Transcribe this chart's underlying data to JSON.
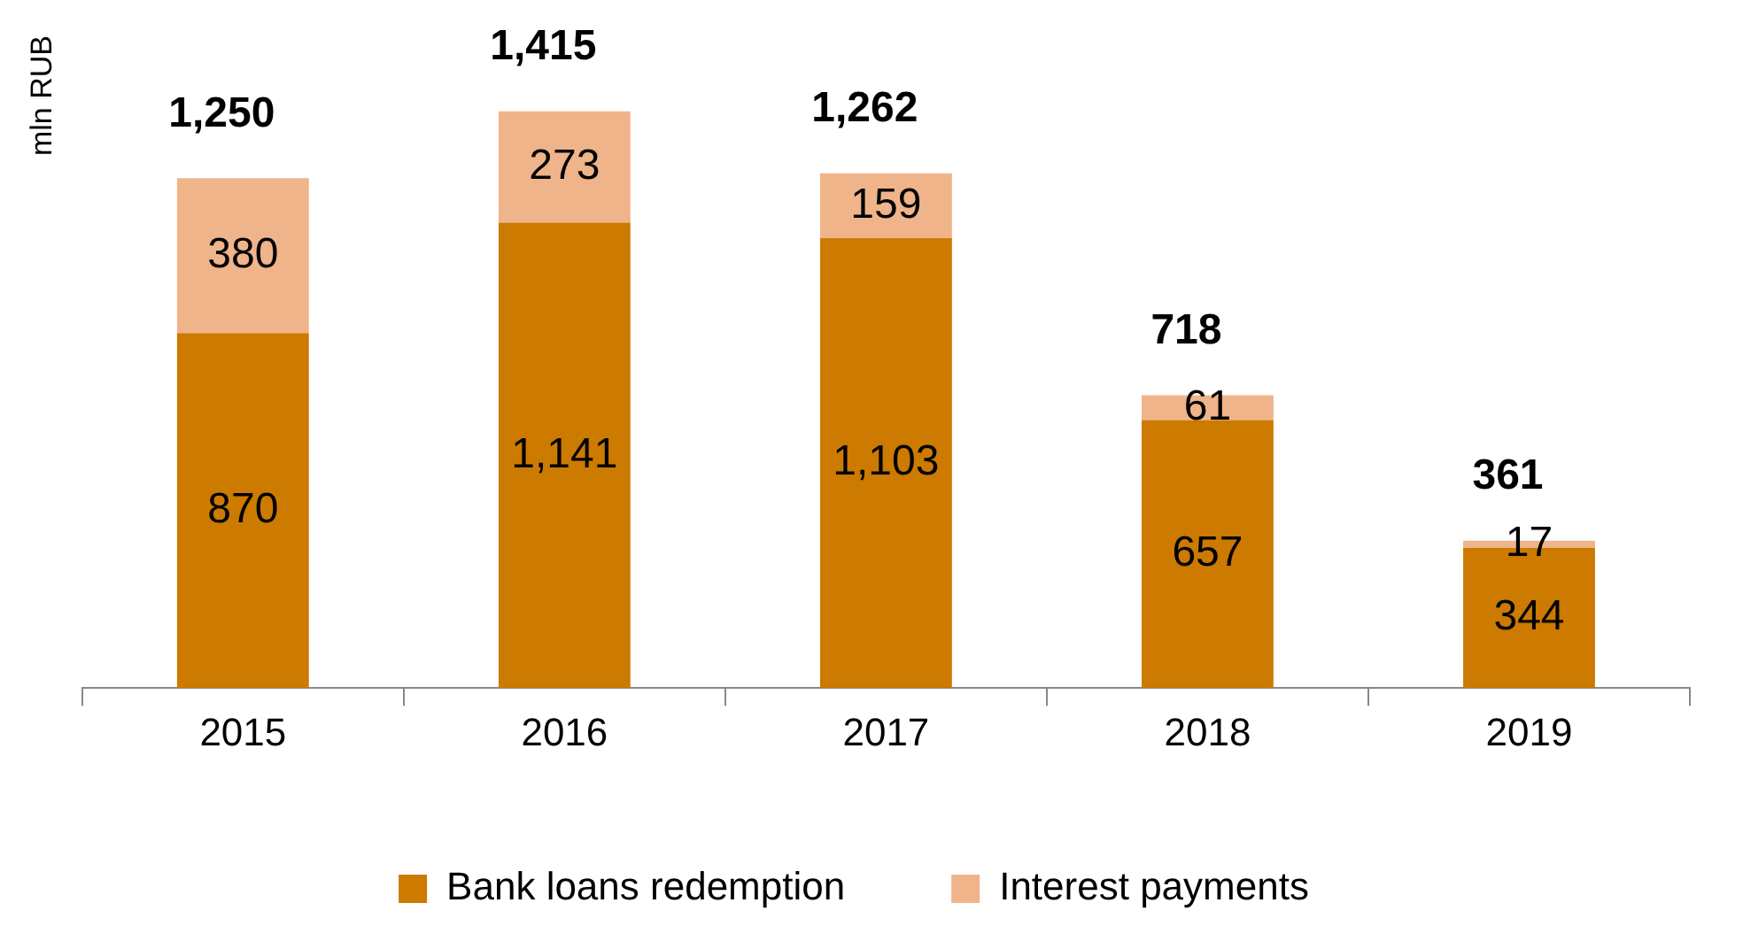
{
  "chart_data": {
    "type": "bar",
    "stacked": true,
    "ylabel": "mln RUB",
    "categories": [
      "2015",
      "2016",
      "2017",
      "2018",
      "2019"
    ],
    "series": [
      {
        "name": "Bank loans redemption",
        "color": "#cc7a00",
        "values": [
          870,
          1141,
          1103,
          657,
          344
        ],
        "value_labels": [
          "870",
          "1,141",
          "1,103",
          "657",
          "344"
        ]
      },
      {
        "name": "Interest payments",
        "color": "#f0b48a",
        "values": [
          380,
          273,
          159,
          61,
          17
        ],
        "value_labels": [
          "380",
          "273",
          "159",
          "61",
          "17"
        ]
      }
    ],
    "totals": [
      "1,250",
      "1,415",
      "1,262",
      "718",
      "361"
    ],
    "legend": "bottom",
    "grid": false,
    "tick_labels": "x"
  }
}
